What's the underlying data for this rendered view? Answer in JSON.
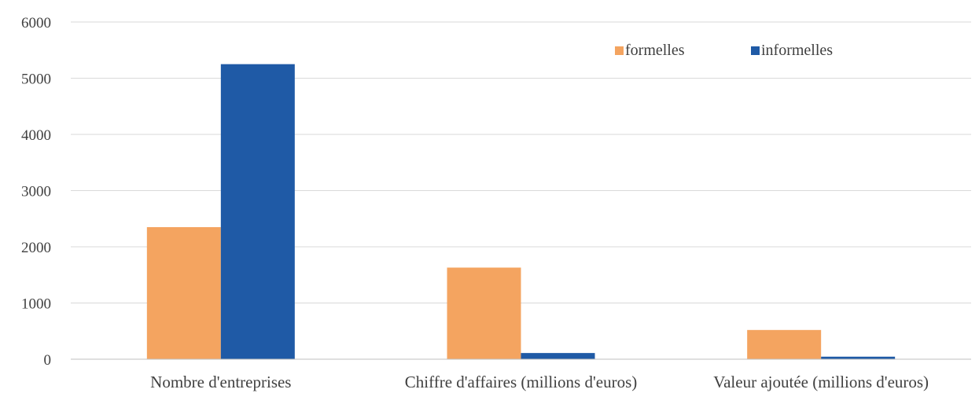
{
  "chart_data": {
    "type": "bar",
    "title": "",
    "xlabel": "",
    "ylabel": "",
    "categories": [
      "Nombre d'entreprises",
      "Chiffre d'affaires (millions d'euros)",
      "Valeur ajoutée (millions d'euros)"
    ],
    "series": [
      {
        "name": "formelles",
        "color": "#f4a460",
        "values": [
          2350,
          1630,
          520
        ]
      },
      {
        "name": "informelles",
        "color": "#1f5aa6",
        "values": [
          5250,
          110,
          45
        ]
      }
    ],
    "ylim": [
      0,
      6000
    ],
    "yticks": [
      "0",
      "1000",
      "2000",
      "3000",
      "4000",
      "5000",
      "6000"
    ],
    "grid": true,
    "legend_position": "top-right"
  }
}
